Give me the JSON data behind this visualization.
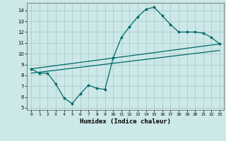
{
  "title": "",
  "xlabel": "Humidex (Indice chaleur)",
  "ylabel": "",
  "bg_color": "#cce8e8",
  "grid_color": "#b0d0d0",
  "line_color": "#006868",
  "xlim": [
    -0.5,
    23.5
  ],
  "ylim": [
    4.8,
    14.7
  ],
  "yticks": [
    5,
    6,
    7,
    8,
    9,
    10,
    11,
    12,
    13,
    14
  ],
  "xticks": [
    0,
    1,
    2,
    3,
    4,
    5,
    6,
    7,
    8,
    9,
    10,
    11,
    12,
    13,
    14,
    15,
    16,
    17,
    18,
    19,
    20,
    21,
    22,
    23
  ],
  "curve1_x": [
    0,
    1,
    2,
    3,
    4,
    5,
    6,
    7,
    8,
    9,
    10,
    11,
    12,
    13,
    14,
    15,
    16,
    17,
    18,
    19,
    20,
    21,
    22,
    23
  ],
  "curve1_y": [
    8.6,
    8.2,
    8.2,
    7.2,
    5.9,
    5.4,
    6.3,
    7.1,
    6.8,
    6.7,
    9.6,
    11.5,
    12.5,
    13.4,
    14.1,
    14.3,
    13.5,
    12.7,
    12.0,
    12.0,
    12.0,
    11.9,
    11.5,
    10.9
  ],
  "curve2_x": [
    0,
    23
  ],
  "curve2_y": [
    8.6,
    10.9
  ],
  "curve3_x": [
    0,
    23
  ],
  "curve3_y": [
    8.2,
    10.3
  ]
}
